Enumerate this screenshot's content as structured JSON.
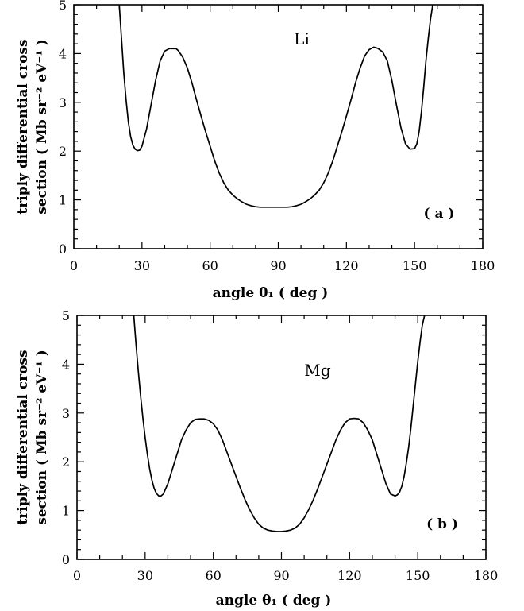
{
  "chart_data": [
    {
      "type": "line",
      "panel_label": "( a )",
      "annotation": "Li",
      "xlabel": "angle θ₁ ( deg )",
      "ylabel_line1": "triply differential cross",
      "ylabel_line2": "section ( Mb sr⁻² eV⁻¹ )",
      "xlim": [
        0,
        180
      ],
      "ylim": [
        0,
        5
      ],
      "xticks": [
        "0",
        "30",
        "60",
        "90",
        "120",
        "150",
        "180"
      ],
      "yticks": [
        "0",
        "1",
        "2",
        "3",
        "4",
        "5"
      ],
      "series": [
        {
          "x": [
            20,
            21,
            22,
            23,
            24,
            25,
            26,
            27,
            28,
            29,
            30,
            32,
            34,
            36,
            38,
            40,
            42,
            44,
            45,
            46,
            48,
            50,
            52,
            54,
            56,
            58,
            60,
            62,
            64,
            66,
            68,
            70,
            72,
            74,
            76,
            78,
            80,
            82,
            84,
            86,
            88,
            90,
            92,
            94,
            96,
            98,
            100,
            102,
            104,
            106,
            108,
            110,
            112,
            114,
            116,
            118,
            120,
            122,
            124,
            126,
            128,
            130,
            132,
            133,
            134,
            136,
            138,
            140,
            142,
            144,
            146,
            148,
            150,
            151,
            152,
            153,
            154,
            155,
            156,
            157,
            158
          ],
          "y": [
            5.0,
            4.3,
            3.6,
            3.05,
            2.6,
            2.3,
            2.12,
            2.04,
            2.01,
            2.02,
            2.1,
            2.45,
            2.95,
            3.45,
            3.85,
            4.05,
            4.1,
            4.1,
            4.1,
            4.06,
            3.92,
            3.7,
            3.4,
            3.05,
            2.72,
            2.4,
            2.1,
            1.8,
            1.55,
            1.35,
            1.2,
            1.1,
            1.02,
            0.96,
            0.91,
            0.88,
            0.86,
            0.85,
            0.85,
            0.85,
            0.85,
            0.85,
            0.85,
            0.85,
            0.86,
            0.88,
            0.91,
            0.96,
            1.02,
            1.1,
            1.2,
            1.35,
            1.55,
            1.8,
            2.1,
            2.4,
            2.72,
            3.05,
            3.4,
            3.7,
            3.95,
            4.08,
            4.13,
            4.12,
            4.1,
            4.03,
            3.85,
            3.45,
            2.95,
            2.48,
            2.15,
            2.04,
            2.05,
            2.15,
            2.4,
            2.8,
            3.3,
            3.85,
            4.3,
            4.7,
            5.0
          ]
        }
      ]
    },
    {
      "type": "line",
      "panel_label": "( b )",
      "annotation": "Mg",
      "xlabel": "angle θ₁ ( deg )",
      "ylabel_line1": "triply differential cross",
      "ylabel_line2": "section ( Mb sr⁻² eV⁻¹ )",
      "xlim": [
        0,
        180
      ],
      "ylim": [
        0,
        5
      ],
      "xticks": [
        "0",
        "30",
        "60",
        "90",
        "120",
        "150",
        "180"
      ],
      "yticks": [
        "0",
        "1",
        "2",
        "3",
        "4",
        "5"
      ],
      "series": [
        {
          "x": [
            25,
            26,
            27,
            28,
            29,
            30,
            31,
            32,
            33,
            34,
            35,
            36,
            37,
            38,
            40,
            42,
            44,
            46,
            48,
            50,
            52,
            54,
            56,
            58,
            60,
            62,
            64,
            66,
            68,
            70,
            72,
            74,
            76,
            78,
            80,
            82,
            84,
            86,
            88,
            90,
            92,
            94,
            96,
            98,
            100,
            102,
            104,
            106,
            108,
            110,
            112,
            114,
            116,
            118,
            120,
            122,
            124,
            126,
            128,
            130,
            132,
            134,
            136,
            138,
            140,
            141,
            142,
            143,
            144,
            145,
            146,
            147,
            148,
            149,
            150,
            151,
            152,
            153
          ],
          "y": [
            5.0,
            4.4,
            3.85,
            3.35,
            2.9,
            2.5,
            2.15,
            1.85,
            1.62,
            1.45,
            1.35,
            1.3,
            1.3,
            1.34,
            1.55,
            1.85,
            2.15,
            2.45,
            2.65,
            2.8,
            2.87,
            2.88,
            2.88,
            2.85,
            2.78,
            2.65,
            2.45,
            2.2,
            1.95,
            1.7,
            1.45,
            1.22,
            1.02,
            0.85,
            0.72,
            0.64,
            0.6,
            0.58,
            0.57,
            0.57,
            0.58,
            0.6,
            0.64,
            0.72,
            0.85,
            1.02,
            1.22,
            1.45,
            1.7,
            1.95,
            2.2,
            2.45,
            2.65,
            2.8,
            2.88,
            2.89,
            2.88,
            2.8,
            2.65,
            2.45,
            2.15,
            1.85,
            1.55,
            1.34,
            1.3,
            1.32,
            1.38,
            1.5,
            1.7,
            1.98,
            2.3,
            2.7,
            3.15,
            3.6,
            4.05,
            4.45,
            4.8,
            5.0
          ]
        }
      ]
    }
  ]
}
